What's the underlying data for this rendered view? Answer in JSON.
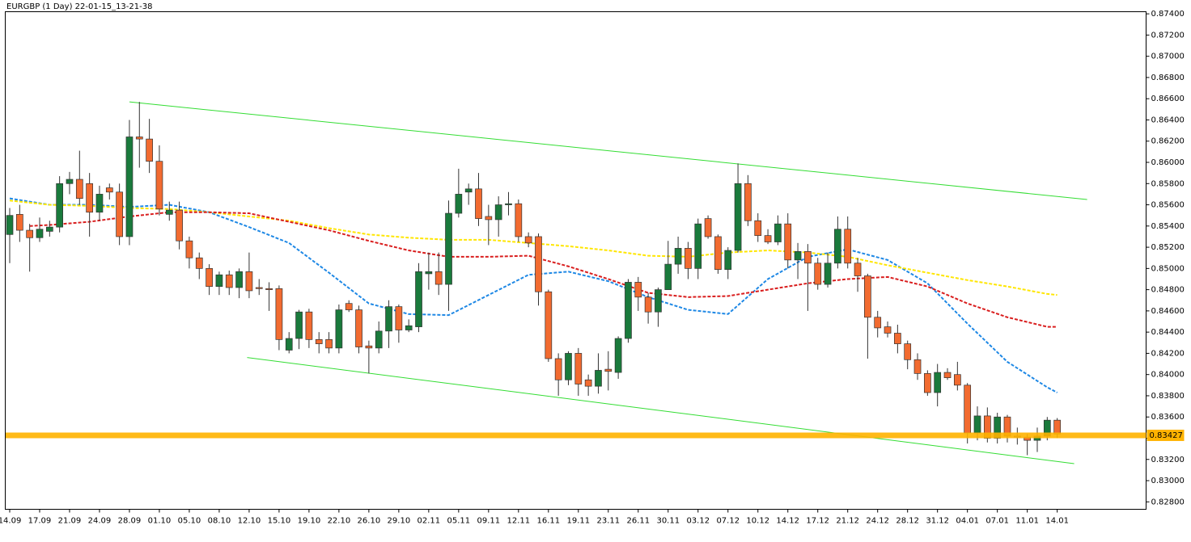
{
  "chart_data": {
    "type": "candlestick",
    "title": "EURGBP (1 Day) 22-01-15_13-21-38",
    "categories": [
      "14.09",
      "17.09",
      "21.09",
      "24.09",
      "28.09",
      "01.10",
      "05.10",
      "08.10",
      "12.10",
      "15.10",
      "19.10",
      "22.10",
      "26.10",
      "29.10",
      "02.11",
      "05.11",
      "09.11",
      "12.11",
      "16.11",
      "19.11",
      "23.11",
      "26.11",
      "30.11",
      "03.12",
      "07.12",
      "10.12",
      "14.12",
      "17.12",
      "21.12",
      "24.12",
      "28.12",
      "31.12",
      "04.01",
      "07.01",
      "11.01",
      "14.01"
    ],
    "up_color": "#1a7a3c",
    "down_color": "#f26b30",
    "open": [
      0.8532,
      0.8551,
      0.8536,
      0.8529,
      0.8535,
      0.8539,
      0.858,
      0.8584,
      0.858,
      0.8553,
      0.8576,
      0.8572,
      0.853,
      0.8624,
      0.8622,
      0.8601,
      0.8551,
      0.8555,
      0.8526,
      0.851,
      0.85,
      0.8483,
      0.8494,
      0.8482,
      0.8497,
      0.8482,
      0.8481,
      0.8481,
      0.8423,
      0.8434,
      0.8459,
      0.8433,
      0.8433,
      0.8425,
      0.8467,
      0.8461,
      0.8427,
      0.8425,
      0.8441,
      0.8464,
      0.8442,
      0.8445,
      0.8495,
      0.8497,
      0.8485,
      0.8552,
      0.8572,
      0.8575,
      0.8549,
      0.8546,
      0.856,
      0.8561,
      0.853,
      0.853,
      0.8478,
      0.8415,
      0.8395,
      0.842,
      0.8395,
      0.8389,
      0.8405,
      0.8402,
      0.8434,
      0.8487,
      0.8473,
      0.8459,
      0.848,
      0.8504,
      0.8519,
      0.85,
      0.8547,
      0.853,
      0.8499,
      0.8517,
      0.858,
      0.8545,
      0.8531,
      0.8525,
      0.8542,
      0.8508,
      0.8516,
      0.8505,
      0.8485,
      0.8505,
      0.8537,
      0.8505,
      0.8493,
      0.8454,
      0.8445,
      0.8439,
      0.8429,
      0.8414,
      0.8401,
      0.8383,
      0.8402,
      0.84,
      0.839,
      0.8345,
      0.8361,
      0.834,
      0.836,
      0.8342,
      0.8341,
      0.8338,
      0.8342,
      0.8357
    ],
    "high": [
      0.8557,
      0.856,
      0.8542,
      0.8548,
      0.8545,
      0.8587,
      0.8591,
      0.8611,
      0.859,
      0.8578,
      0.858,
      0.858,
      0.864,
      0.8657,
      0.8641,
      0.8616,
      0.8563,
      0.8563,
      0.853,
      0.8515,
      0.8504,
      0.8497,
      0.8498,
      0.85,
      0.8515,
      0.849,
      0.8487,
      0.8484,
      0.844,
      0.8461,
      0.8462,
      0.844,
      0.844,
      0.8466,
      0.847,
      0.8465,
      0.8432,
      0.845,
      0.847,
      0.8466,
      0.8452,
      0.8505,
      0.8515,
      0.8515,
      0.8564,
      0.8594,
      0.858,
      0.859,
      0.856,
      0.8568,
      0.8572,
      0.8565,
      0.8534,
      0.8533,
      0.848,
      0.842,
      0.8422,
      0.8425,
      0.84,
      0.842,
      0.8422,
      0.8436,
      0.849,
      0.8492,
      0.8477,
      0.8482,
      0.8526,
      0.853,
      0.8525,
      0.8547,
      0.855,
      0.8532,
      0.852,
      0.8599,
      0.8588,
      0.8552,
      0.8537,
      0.855,
      0.8552,
      0.8524,
      0.8523,
      0.851,
      0.8515,
      0.8549,
      0.8549,
      0.851,
      0.8495,
      0.846,
      0.845,
      0.8447,
      0.8432,
      0.842,
      0.8404,
      0.841,
      0.8406,
      0.8412,
      0.8392,
      0.837,
      0.8369,
      0.8364,
      0.8362,
      0.835,
      0.8344,
      0.835,
      0.836,
      0.8359
    ],
    "low": [
      0.8505,
      0.8525,
      0.8497,
      0.8525,
      0.853,
      0.8534,
      0.857,
      0.856,
      0.853,
      0.8545,
      0.8565,
      0.8522,
      0.8522,
      0.8595,
      0.859,
      0.855,
      0.8545,
      0.8518,
      0.85,
      0.849,
      0.8475,
      0.8475,
      0.8475,
      0.8472,
      0.8472,
      0.8475,
      0.846,
      0.8423,
      0.842,
      0.8424,
      0.8425,
      0.842,
      0.842,
      0.842,
      0.8459,
      0.842,
      0.8401,
      0.842,
      0.8425,
      0.843,
      0.844,
      0.844,
      0.848,
      0.8475,
      0.846,
      0.8548,
      0.856,
      0.854,
      0.8522,
      0.853,
      0.855,
      0.8525,
      0.852,
      0.8465,
      0.8412,
      0.838,
      0.839,
      0.838,
      0.838,
      0.8382,
      0.8385,
      0.8396,
      0.843,
      0.846,
      0.8448,
      0.8445,
      0.848,
      0.8495,
      0.849,
      0.849,
      0.8528,
      0.8495,
      0.849,
      0.8515,
      0.854,
      0.8525,
      0.8523,
      0.8522,
      0.85,
      0.849,
      0.846,
      0.848,
      0.8482,
      0.85,
      0.85,
      0.8478,
      0.8415,
      0.8435,
      0.8435,
      0.842,
      0.8405,
      0.8395,
      0.838,
      0.837,
      0.8395,
      0.8385,
      0.8335,
      0.8338,
      0.8336,
      0.8335,
      0.8336,
      0.8334,
      0.8324,
      0.8327,
      0.8338,
      0.834
    ],
    "close": [
      0.855,
      0.8536,
      0.8529,
      0.8537,
      0.8539,
      0.858,
      0.8584,
      0.8566,
      0.8553,
      0.857,
      0.8572,
      0.853,
      0.8624,
      0.8622,
      0.8601,
      0.8556,
      0.8555,
      0.8526,
      0.851,
      0.85,
      0.8483,
      0.8494,
      0.8482,
      0.8497,
      0.8479,
      0.8481,
      0.848,
      0.8433,
      0.8434,
      0.8459,
      0.8433,
      0.8429,
      0.8425,
      0.8461,
      0.8461,
      0.8426,
      0.8425,
      0.8441,
      0.8464,
      0.8442,
      0.8446,
      0.8497,
      0.8497,
      0.8485,
      0.8552,
      0.857,
      0.8575,
      0.8547,
      0.8546,
      0.856,
      0.8561,
      0.853,
      0.8524,
      0.8478,
      0.8415,
      0.8395,
      0.842,
      0.8391,
      0.8389,
      0.8404,
      0.8403,
      0.8434,
      0.8487,
      0.8473,
      0.8459,
      0.848,
      0.8504,
      0.8519,
      0.85,
      0.8542,
      0.853,
      0.8499,
      0.8517,
      0.858,
      0.8545,
      0.8531,
      0.8525,
      0.8542,
      0.8508,
      0.8516,
      0.8505,
      0.8485,
      0.8505,
      0.8537,
      0.8505,
      0.8493,
      0.8454,
      0.8444,
      0.8439,
      0.8429,
      0.8414,
      0.8401,
      0.8383,
      0.8402,
      0.8397,
      0.839,
      0.8345,
      0.8361,
      0.834,
      0.836,
      0.8342,
      0.8341,
      0.8338,
      0.8342,
      0.8357,
      0.8344
    ],
    "series": [
      {
        "color": "#1e88e5",
        "x": [
          0,
          4,
          8,
          12,
          16,
          20,
          24,
          28,
          32,
          36,
          40,
          44,
          48,
          52,
          56,
          60,
          64,
          68,
          72,
          76,
          80,
          84,
          88,
          92,
          96,
          100,
          104,
          105
        ],
        "values": [
          0.8566,
          0.856,
          0.856,
          0.8558,
          0.856,
          0.8553,
          0.8539,
          0.8524,
          0.8496,
          0.8467,
          0.8457,
          0.8456,
          0.8475,
          0.8494,
          0.8497,
          0.8488,
          0.8473,
          0.8461,
          0.8457,
          0.849,
          0.8511,
          0.8518,
          0.8508,
          0.8486,
          0.8448,
          0.8412,
          0.8388,
          0.8383
        ]
      },
      {
        "color": "#ffe600",
        "x": [
          0,
          4,
          8,
          12,
          16,
          20,
          24,
          28,
          32,
          36,
          40,
          44,
          48,
          52,
          56,
          60,
          64,
          68,
          72,
          76,
          80,
          84,
          88,
          92,
          96,
          100,
          104,
          105
        ],
        "values": [
          0.8564,
          0.856,
          0.8559,
          0.8557,
          0.8556,
          0.8553,
          0.8549,
          0.8545,
          0.8538,
          0.8532,
          0.8529,
          0.8527,
          0.8527,
          0.8524,
          0.8521,
          0.8517,
          0.8512,
          0.8511,
          0.8515,
          0.8517,
          0.8515,
          0.8511,
          0.8503,
          0.8496,
          0.8489,
          0.8483,
          0.8476,
          0.8475
        ]
      },
      {
        "color": "#d91e1e",
        "x": [
          2,
          4,
          8,
          12,
          16,
          20,
          24,
          28,
          32,
          36,
          40,
          44,
          48,
          52,
          56,
          60,
          64,
          68,
          72,
          76,
          80,
          84,
          88,
          92,
          96,
          100,
          104,
          105
        ],
        "values": [
          0.854,
          0.8541,
          0.8544,
          0.8549,
          0.8553,
          0.8553,
          0.8552,
          0.8544,
          0.8536,
          0.8526,
          0.8517,
          0.8511,
          0.8511,
          0.8512,
          0.8502,
          0.849,
          0.8477,
          0.8473,
          0.8474,
          0.848,
          0.8486,
          0.849,
          0.8492,
          0.8483,
          0.8467,
          0.8454,
          0.8445,
          0.8445
        ]
      }
    ],
    "dashed": true,
    "trend_lines": [
      {
        "color": "#33dd33",
        "x": [
          12,
          108
        ],
        "values": [
          0.8657,
          0.8565
        ]
      },
      {
        "color": "#33dd33",
        "x": [
          23.8,
          106.7
        ],
        "values": [
          0.8416,
          0.8316
        ]
      }
    ],
    "price_line": {
      "value": 0.83427,
      "color": "#ffb300"
    },
    "ylim": [
      0.8273,
      0.8742
    ],
    "yticks": [
      {
        "value": 0.874,
        "label": "0.87400"
      },
      {
        "value": 0.872,
        "label": "0.87200"
      },
      {
        "value": 0.87,
        "label": "0.87000"
      },
      {
        "value": 0.868,
        "label": "0.86800"
      },
      {
        "value": 0.866,
        "label": "0.86600"
      },
      {
        "value": 0.864,
        "label": "0.86400"
      },
      {
        "value": 0.862,
        "label": "0.86200"
      },
      {
        "value": 0.86,
        "label": "0.86000"
      },
      {
        "value": 0.858,
        "label": "0.85800"
      },
      {
        "value": 0.856,
        "label": "0.85600"
      },
      {
        "value": 0.854,
        "label": "0.85400"
      },
      {
        "value": 0.852,
        "label": "0.85200"
      },
      {
        "value": 0.85,
        "label": "0.85000"
      },
      {
        "value": 0.848,
        "label": "0.84800"
      },
      {
        "value": 0.846,
        "label": "0.84600"
      },
      {
        "value": 0.844,
        "label": "0.84400"
      },
      {
        "value": 0.842,
        "label": "0.84200"
      },
      {
        "value": 0.84,
        "label": "0.84000"
      },
      {
        "value": 0.838,
        "label": "0.83800"
      },
      {
        "value": 0.836,
        "label": "0.83600"
      },
      {
        "value": 0.834,
        "label": "0.83400"
      },
      {
        "value": 0.832,
        "label": "0.83200"
      },
      {
        "value": 0.83,
        "label": "0.83000"
      },
      {
        "value": 0.828,
        "label": "0.82800"
      }
    ]
  }
}
